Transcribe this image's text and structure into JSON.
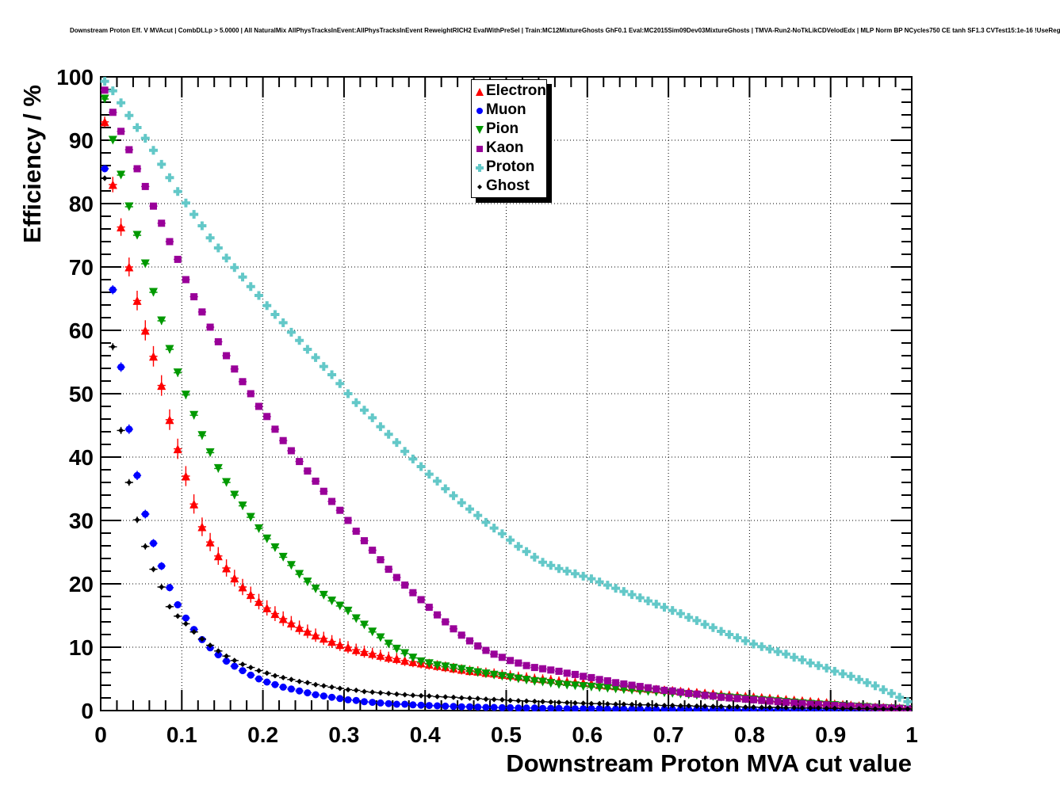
{
  "title": "Downstream Proton Eff. V MVAcut | CombDLLp > 5.0000 | All NaturalMix AllPhysTracksInEvent:AllPhysTracksInEvent ReweightRICH2 EvalWithPreSel | Train:MC12MixtureGhosts GhF0.1 Eval:MC2015Sim09Dev03MixtureGhosts | TMVA-Run2-NoTkLikCDVelodEdx | MLP Norm BP NCycles750 CE tanh SF1.3 CVTest15:1e-16 !UseReg",
  "chart_data": {
    "type": "scatter",
    "xlabel": "Downstream Proton MVA cut value",
    "ylabel": "Efficiency / %",
    "xlim": [
      0,
      1
    ],
    "ylim": [
      0,
      100
    ],
    "xtick_labels": [
      "0",
      "0.1",
      "0.2",
      "0.3",
      "0.4",
      "0.5",
      "0.6",
      "0.7",
      "0.8",
      "0.9",
      "1"
    ],
    "ytick_labels": [
      "0",
      "10",
      "20",
      "30",
      "40",
      "50",
      "60",
      "70",
      "80",
      "90",
      "100"
    ],
    "grid": "dotted",
    "legend_position": "top-center",
    "x_start": 0.005,
    "x_step": 0.01,
    "series": [
      {
        "name": "Electron",
        "marker": "triangle-up",
        "color": "#ff0000",
        "values": [
          92.9,
          83.0,
          76.3,
          70.0,
          64.7,
          60.0,
          55.9,
          51.3,
          45.9,
          41.3,
          37.0,
          32.6,
          29.0,
          26.6,
          24.4,
          22.5,
          20.9,
          19.5,
          18.3,
          17.2,
          16.2,
          15.3,
          14.5,
          13.8,
          13.1,
          12.5,
          11.9,
          11.4,
          10.9,
          10.4,
          10.0,
          9.6,
          9.3,
          9.0,
          8.7,
          8.4,
          8.2,
          7.9,
          7.7,
          7.5,
          7.3,
          7.1,
          6.9,
          6.7,
          6.5,
          6.3,
          6.2,
          6.0,
          5.9,
          5.7,
          5.6,
          5.4,
          5.3,
          5.1,
          5.0,
          4.9,
          4.7,
          4.6,
          4.5,
          4.4,
          4.3,
          4.1,
          4.0,
          3.9,
          3.8,
          3.7,
          3.6,
          3.5,
          3.4,
          3.3,
          3.2,
          3.1,
          3.0,
          2.9,
          2.8,
          2.7,
          2.6,
          2.5,
          2.4,
          2.3,
          2.2,
          2.1,
          2.0,
          1.9,
          1.8,
          1.7,
          1.6,
          1.5,
          1.4,
          1.3,
          1.1,
          1.0,
          0.9,
          0.8,
          0.7,
          0.6,
          0.55,
          0.5,
          0.45,
          0.4
        ]
      },
      {
        "name": "Muon",
        "marker": "circle",
        "color": "#0000ff",
        "values": [
          85.5,
          66.4,
          54.2,
          44.4,
          37.1,
          31.0,
          26.4,
          22.8,
          19.4,
          16.7,
          14.6,
          12.8,
          11.2,
          9.9,
          8.8,
          7.8,
          7.0,
          6.3,
          5.6,
          5.0,
          4.5,
          4.1,
          3.7,
          3.4,
          3.1,
          2.8,
          2.5,
          2.3,
          2.1,
          1.9,
          1.7,
          1.6,
          1.4,
          1.3,
          1.2,
          1.1,
          1.0,
          1.0,
          0.9,
          0.85,
          0.8,
          0.75,
          0.7,
          0.65,
          0.6,
          0.6,
          0.55,
          0.5,
          0.5,
          0.45,
          0.45,
          0.4,
          0.4,
          0.4,
          0.35,
          0.35,
          0.35,
          0.3,
          0.3,
          0.3,
          0.3,
          0.3,
          0.25,
          0.25,
          0.25,
          0.25,
          0.25,
          0.2,
          0.2,
          0.2,
          0.2,
          0.2,
          0.2,
          0.2,
          0.2,
          0.15,
          0.15,
          0.15,
          0.15,
          0.15,
          0.15,
          0.15,
          0.15,
          0.15,
          0.1,
          0.1,
          0.1,
          0.1,
          0.1,
          0.1,
          0.1,
          0.1,
          0.1,
          0.1,
          0.1,
          0.1,
          0.1,
          0.1,
          0.1,
          0.1
        ]
      },
      {
        "name": "Pion",
        "marker": "triangle-down",
        "color": "#009900",
        "values": [
          96.5,
          90.0,
          84.5,
          79.5,
          75.0,
          70.5,
          66.0,
          61.5,
          57.0,
          53.3,
          49.8,
          46.6,
          43.4,
          40.7,
          38.2,
          36.0,
          34.0,
          32.3,
          30.5,
          28.7,
          27.1,
          25.7,
          24.2,
          22.9,
          21.5,
          20.3,
          19.2,
          18.2,
          17.3,
          16.5,
          15.7,
          14.5,
          13.5,
          12.4,
          11.5,
          10.5,
          9.7,
          9.0,
          8.3,
          7.7,
          7.4,
          7.1,
          6.9,
          6.7,
          6.5,
          6.2,
          6.0,
          5.8,
          5.6,
          5.4,
          5.2,
          5.0,
          4.8,
          4.6,
          4.5,
          4.3,
          4.1,
          4.0,
          3.9,
          3.8,
          3.7,
          3.6,
          3.5,
          3.4,
          3.3,
          3.2,
          3.1,
          3.0,
          2.9,
          2.8,
          2.7,
          2.6,
          2.5,
          2.4,
          2.3,
          2.2,
          2.1,
          2.0,
          1.9,
          1.8,
          1.7,
          1.6,
          1.5,
          1.4,
          1.3,
          1.2,
          1.1,
          1.0,
          0.9,
          0.85,
          0.8,
          0.7,
          0.6,
          0.55,
          0.5,
          0.4,
          0.35,
          0.3,
          0.25,
          0.2
        ]
      },
      {
        "name": "Kaon",
        "marker": "square",
        "color": "#990099",
        "values": [
          97.9,
          94.4,
          91.4,
          88.5,
          85.5,
          82.7,
          79.6,
          76.9,
          74.0,
          71.2,
          68.0,
          65.3,
          62.9,
          60.5,
          58.2,
          56.0,
          53.9,
          51.9,
          50.0,
          48.0,
          46.4,
          44.4,
          42.6,
          41.0,
          39.3,
          37.8,
          36.2,
          34.6,
          33.0,
          31.6,
          30.0,
          28.3,
          26.8,
          25.3,
          23.8,
          22.3,
          21.0,
          19.8,
          18.6,
          17.5,
          16.3,
          15.1,
          14.0,
          12.9,
          11.9,
          11.0,
          10.2,
          9.5,
          8.9,
          8.4,
          7.9,
          7.5,
          7.1,
          6.8,
          6.6,
          6.4,
          6.2,
          5.9,
          5.7,
          5.4,
          5.2,
          4.9,
          4.7,
          4.4,
          4.2,
          4.0,
          3.8,
          3.6,
          3.4,
          3.2,
          3.1,
          2.9,
          2.7,
          2.6,
          2.4,
          2.3,
          2.1,
          2.0,
          1.9,
          1.8,
          1.7,
          1.6,
          1.5,
          1.4,
          1.3,
          1.2,
          1.1,
          1.0,
          0.95,
          0.9,
          0.8,
          0.75,
          0.7,
          0.6,
          0.55,
          0.5,
          0.45,
          0.4,
          0.35,
          0.3
        ]
      },
      {
        "name": "Proton",
        "marker": "cross",
        "color": "#63c8c8",
        "values": [
          99.3,
          97.8,
          95.9,
          93.9,
          92.0,
          90.3,
          88.4,
          86.2,
          84.1,
          81.9,
          80.1,
          78.3,
          76.5,
          74.6,
          73.0,
          71.4,
          69.9,
          68.4,
          66.9,
          65.5,
          63.9,
          62.5,
          61.2,
          59.7,
          58.4,
          57.0,
          55.7,
          54.3,
          53.0,
          51.6,
          50.0,
          48.6,
          47.4,
          46.2,
          44.8,
          43.6,
          42.3,
          40.9,
          39.7,
          38.5,
          37.3,
          36.2,
          35.0,
          33.9,
          32.8,
          31.8,
          30.8,
          29.7,
          28.8,
          27.9,
          26.9,
          25.9,
          25.1,
          24.2,
          23.4,
          22.9,
          22.4,
          22.0,
          21.6,
          21.2,
          20.8,
          20.3,
          19.8,
          19.3,
          18.8,
          18.3,
          17.8,
          17.3,
          16.8,
          16.3,
          15.8,
          15.3,
          14.7,
          14.2,
          13.6,
          13.1,
          12.5,
          12.0,
          11.5,
          11.0,
          10.5,
          10.1,
          9.7,
          9.3,
          8.9,
          8.4,
          8.0,
          7.5,
          7.1,
          6.7,
          6.2,
          5.8,
          5.4,
          4.9,
          4.4,
          3.9,
          3.3,
          2.7,
          2.1,
          1.4
        ]
      },
      {
        "name": "Ghost",
        "marker": "diamond",
        "color": "#000000",
        "values": [
          84.0,
          57.4,
          44.2,
          36.0,
          30.1,
          25.9,
          22.3,
          19.5,
          16.4,
          14.9,
          13.7,
          12.4,
          11.3,
          10.3,
          9.4,
          8.6,
          7.9,
          7.3,
          6.8,
          6.3,
          5.9,
          5.5,
          5.2,
          4.9,
          4.6,
          4.4,
          4.1,
          3.9,
          3.7,
          3.5,
          3.3,
          3.2,
          3.0,
          2.9,
          2.8,
          2.7,
          2.6,
          2.5,
          2.4,
          2.35,
          2.3,
          2.2,
          2.15,
          2.1,
          2.0,
          1.95,
          1.9,
          1.8,
          1.75,
          1.7,
          1.6,
          1.55,
          1.5,
          1.45,
          1.4,
          1.35,
          1.3,
          1.25,
          1.2,
          1.15,
          1.1,
          1.1,
          1.05,
          1.0,
          1.0,
          0.95,
          0.9,
          0.9,
          0.85,
          0.8,
          0.8,
          0.75,
          0.75,
          0.7,
          0.7,
          0.65,
          0.65,
          0.6,
          0.6,
          0.55,
          0.55,
          0.5,
          0.5,
          0.5,
          0.45,
          0.45,
          0.4,
          0.4,
          0.4,
          0.35,
          0.35,
          0.3,
          0.3,
          0.3,
          0.3,
          0.25,
          0.25,
          0.25,
          0.25,
          0.25
        ]
      }
    ]
  }
}
